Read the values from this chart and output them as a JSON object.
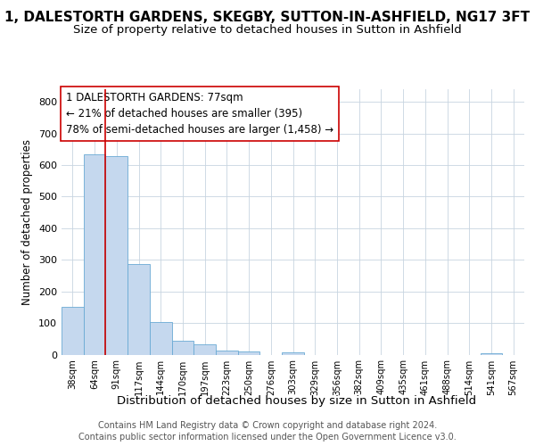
{
  "title": "1, DALESTORTH GARDENS, SKEGBY, SUTTON-IN-ASHFIELD, NG17 3FT",
  "subtitle": "Size of property relative to detached houses in Sutton in Ashfield",
  "xlabel": "Distribution of detached houses by size in Sutton in Ashfield",
  "ylabel": "Number of detached properties",
  "categories": [
    "38sqm",
    "64sqm",
    "91sqm",
    "117sqm",
    "144sqm",
    "170sqm",
    "197sqm",
    "223sqm",
    "250sqm",
    "276sqm",
    "303sqm",
    "329sqm",
    "356sqm",
    "382sqm",
    "409sqm",
    "435sqm",
    "461sqm",
    "488sqm",
    "514sqm",
    "541sqm",
    "567sqm"
  ],
  "values": [
    150,
    635,
    628,
    288,
    102,
    45,
    32,
    12,
    10,
    0,
    8,
    0,
    0,
    0,
    0,
    0,
    0,
    0,
    0,
    5,
    0
  ],
  "bar_color": "#c5d8ee",
  "bar_edge_color": "#6aaad4",
  "vline_color": "#cc0000",
  "vline_x": 1.5,
  "annotation_line1": "1 DALESTORTH GARDENS: 77sqm",
  "annotation_line2": "← 21% of detached houses are smaller (395)",
  "annotation_line3": "78% of semi-detached houses are larger (1,458) →",
  "annotation_box_edge": "#cc0000",
  "annotation_box_bg": "#ffffff",
  "ylim": [
    0,
    840
  ],
  "yticks": [
    0,
    100,
    200,
    300,
    400,
    500,
    600,
    700,
    800
  ],
  "footer_line1": "Contains HM Land Registry data © Crown copyright and database right 2024.",
  "footer_line2": "Contains public sector information licensed under the Open Government Licence v3.0.",
  "background_color": "#ffffff",
  "grid_color": "#c8d4e0"
}
